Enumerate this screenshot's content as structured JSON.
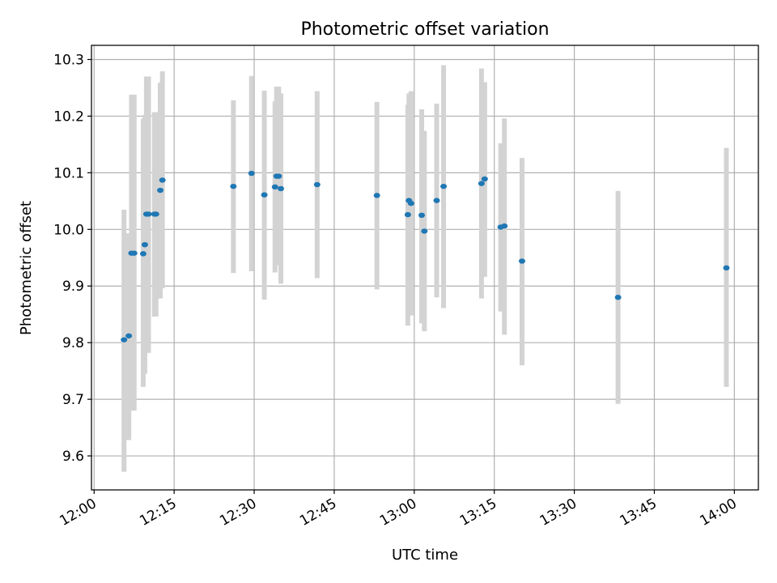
{
  "chart_data": {
    "type": "scatter",
    "title": "Photometric offset variation",
    "xlabel": "UTC time",
    "ylabel": "Photometric offset",
    "x_unit": "minutes after 12:00 UTC",
    "xlim": [
      -0.5,
      124.5
    ],
    "ylim": [
      9.54,
      10.325
    ],
    "x_ticks": [
      {
        "value": 0,
        "label": "12:00"
      },
      {
        "value": 15,
        "label": "12:15"
      },
      {
        "value": 30,
        "label": "12:30"
      },
      {
        "value": 45,
        "label": "12:45"
      },
      {
        "value": 60,
        "label": "13:00"
      },
      {
        "value": 75,
        "label": "13:15"
      },
      {
        "value": 90,
        "label": "13:30"
      },
      {
        "value": 105,
        "label": "13:45"
      },
      {
        "value": 120,
        "label": "14:00"
      }
    ],
    "y_ticks": [
      {
        "value": 9.6,
        "label": "9.6"
      },
      {
        "value": 9.7,
        "label": "9.7"
      },
      {
        "value": 9.8,
        "label": "9.8"
      },
      {
        "value": 9.9,
        "label": "9.9"
      },
      {
        "value": 10.0,
        "label": "10.0"
      },
      {
        "value": 10.1,
        "label": "10.1"
      },
      {
        "value": 10.2,
        "label": "10.2"
      },
      {
        "value": 10.3,
        "label": "10.3"
      }
    ],
    "grid": true,
    "colors": {
      "point": "#1f77b4",
      "errorbar": "#d3d3d3",
      "grid": "#b0b0b0",
      "axes": "#000000"
    },
    "points": [
      {
        "x": 5.6,
        "y": 9.805,
        "err_low": 9.572,
        "err_high": 10.035
      },
      {
        "x": 6.5,
        "y": 9.812,
        "err_low": 9.628,
        "err_high": 9.993
      },
      {
        "x": 7.0,
        "y": 9.958,
        "err_low": 9.68,
        "err_high": 10.238
      },
      {
        "x": 7.5,
        "y": 9.958,
        "err_low": 9.68,
        "err_high": 10.238
      },
      {
        "x": 9.2,
        "y": 9.957,
        "err_low": 9.722,
        "err_high": 10.195
      },
      {
        "x": 9.5,
        "y": 9.973,
        "err_low": 9.745,
        "err_high": 10.202
      },
      {
        "x": 9.8,
        "y": 10.027,
        "err_low": 9.782,
        "err_high": 10.27
      },
      {
        "x": 10.2,
        "y": 10.027,
        "err_low": 9.782,
        "err_high": 10.27
      },
      {
        "x": 11.3,
        "y": 10.027,
        "err_low": 9.846,
        "err_high": 10.207
      },
      {
        "x": 11.6,
        "y": 10.027,
        "err_low": 9.846,
        "err_high": 10.207
      },
      {
        "x": 12.4,
        "y": 10.069,
        "err_low": 9.878,
        "err_high": 10.259
      },
      {
        "x": 12.8,
        "y": 10.087,
        "err_low": 9.896,
        "err_high": 10.279
      },
      {
        "x": 26.1,
        "y": 10.076,
        "err_low": 9.923,
        "err_high": 10.228
      },
      {
        "x": 29.5,
        "y": 10.099,
        "err_low": 9.926,
        "err_high": 10.271
      },
      {
        "x": 31.9,
        "y": 10.061,
        "err_low": 9.876,
        "err_high": 10.245
      },
      {
        "x": 33.9,
        "y": 10.075,
        "err_low": 9.924,
        "err_high": 10.226
      },
      {
        "x": 34.2,
        "y": 10.094,
        "err_low": 9.937,
        "err_high": 10.252
      },
      {
        "x": 34.6,
        "y": 10.094,
        "err_low": 9.937,
        "err_high": 10.252
      },
      {
        "x": 35.0,
        "y": 10.072,
        "err_low": 9.904,
        "err_high": 10.24
      },
      {
        "x": 41.8,
        "y": 10.079,
        "err_low": 9.914,
        "err_high": 10.244
      },
      {
        "x": 53.0,
        "y": 10.06,
        "err_low": 9.894,
        "err_high": 10.225
      },
      {
        "x": 58.8,
        "y": 10.026,
        "err_low": 9.83,
        "err_high": 10.22
      },
      {
        "x": 59.0,
        "y": 10.051,
        "err_low": 9.86,
        "err_high": 10.24
      },
      {
        "x": 59.4,
        "y": 10.046,
        "err_low": 9.848,
        "err_high": 10.244
      },
      {
        "x": 61.4,
        "y": 10.025,
        "err_low": 9.834,
        "err_high": 10.212
      },
      {
        "x": 61.9,
        "y": 9.997,
        "err_low": 9.82,
        "err_high": 10.174
      },
      {
        "x": 64.2,
        "y": 10.051,
        "err_low": 9.88,
        "err_high": 10.222
      },
      {
        "x": 65.5,
        "y": 10.076,
        "err_low": 9.861,
        "err_high": 10.29
      },
      {
        "x": 72.6,
        "y": 10.081,
        "err_low": 9.878,
        "err_high": 10.284
      },
      {
        "x": 73.2,
        "y": 10.089,
        "err_low": 9.916,
        "err_high": 10.26
      },
      {
        "x": 76.2,
        "y": 10.004,
        "err_low": 9.855,
        "err_high": 10.152
      },
      {
        "x": 76.9,
        "y": 10.006,
        "err_low": 9.814,
        "err_high": 10.196
      },
      {
        "x": 80.2,
        "y": 9.944,
        "err_low": 9.76,
        "err_high": 10.126
      },
      {
        "x": 98.2,
        "y": 9.88,
        "err_low": 9.692,
        "err_high": 10.068
      },
      {
        "x": 118.5,
        "y": 9.932,
        "err_low": 9.722,
        "err_high": 10.144
      }
    ]
  }
}
